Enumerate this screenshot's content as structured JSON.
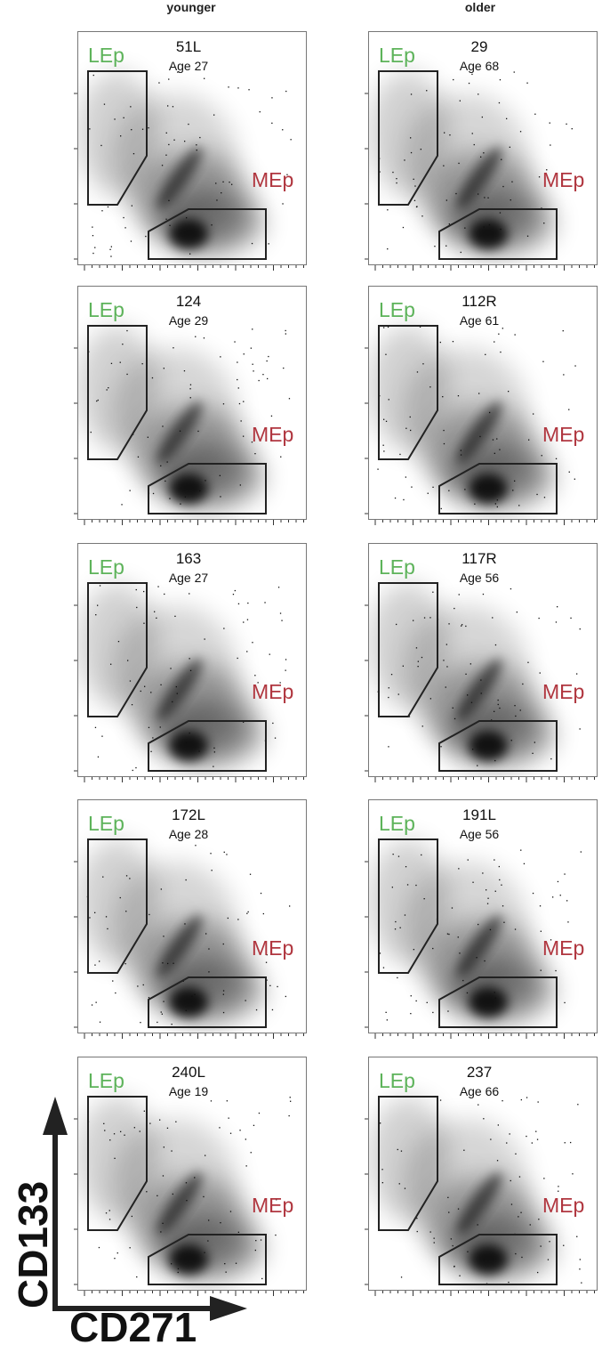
{
  "columns": [
    "younger",
    "older"
  ],
  "gate_labels": {
    "lep": "LEp",
    "mep": "MEp"
  },
  "axis": {
    "x_label": "CD271",
    "y_label": "CD133"
  },
  "colors": {
    "lep": "#5db35a",
    "mep": "#b0363f",
    "density": "#1a1a1a",
    "gate": "#222222"
  },
  "chart_data": [
    {
      "type": "scatter",
      "column": "younger",
      "row": 1,
      "sample": "51L",
      "age": "Age 27"
    },
    {
      "type": "scatter",
      "column": "older",
      "row": 1,
      "sample": "29",
      "age": "Age 68"
    },
    {
      "type": "scatter",
      "column": "younger",
      "row": 2,
      "sample": "124",
      "age": "Age 29"
    },
    {
      "type": "scatter",
      "column": "older",
      "row": 2,
      "sample": "112R",
      "age": "Age 61"
    },
    {
      "type": "scatter",
      "column": "younger",
      "row": 3,
      "sample": "163",
      "age": "Age 27"
    },
    {
      "type": "scatter",
      "column": "older",
      "row": 3,
      "sample": "117R",
      "age": "Age 56"
    },
    {
      "type": "scatter",
      "column": "younger",
      "row": 4,
      "sample": "172L",
      "age": "Age 28"
    },
    {
      "type": "scatter",
      "column": "older",
      "row": 4,
      "sample": "191L",
      "age": "Age 56"
    },
    {
      "type": "scatter",
      "column": "younger",
      "row": 5,
      "sample": "240L",
      "age": "Age 19"
    },
    {
      "type": "scatter",
      "column": "older",
      "row": 5,
      "sample": "237",
      "age": "Age 66"
    }
  ]
}
